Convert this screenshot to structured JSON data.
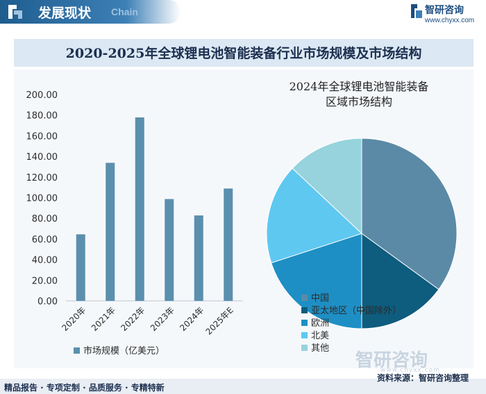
{
  "header": {
    "title": "发展现状",
    "subtitle": "Chain",
    "brand": "智研咨询",
    "brand_url": "www.chyxx.com"
  },
  "main_title": "2020-2025年全球锂电池智能装备行业市场规模及市场结构",
  "colors": {
    "bar": "#5b8fae",
    "header": "#1f5d8f",
    "title_band": "#dce8f3",
    "pie": [
      "#5b8aa6",
      "#0e5c7e",
      "#1e8fc4",
      "#5fc8f0",
      "#96d3dd"
    ]
  },
  "chart_data": [
    {
      "type": "bar",
      "categories": [
        "2020年",
        "2021年",
        "2022年",
        "2023年",
        "2024年",
        "2025年E"
      ],
      "values": [
        64.5,
        133.8,
        177.8,
        98.7,
        82.8,
        108.9
      ],
      "ylim": [
        0,
        200
      ],
      "yticks": [
        "0.00",
        "20.00",
        "40.00",
        "60.00",
        "80.00",
        "100.00",
        "120.00",
        "140.00",
        "160.00",
        "180.00",
        "200.00"
      ],
      "legend": "市场规模（亿美元）",
      "legend_position": "bottom-left",
      "grid": false
    },
    {
      "type": "pie",
      "title_lines": [
        "2024年全球锂电池智能装备",
        "区域市场结构"
      ],
      "labels": [
        "中国",
        "亚太地区（中国除外）",
        "欧洲",
        "北美",
        "其他"
      ],
      "values": [
        35,
        15,
        20,
        17,
        13
      ],
      "legend_position": "bottom"
    }
  ],
  "footer": {
    "left": "精品报告 · 专项定制 · 品质服务 · 专精特新",
    "right": "资料来源：智研咨询整理"
  },
  "watermark": {
    "text": "智研咨询",
    "url": "www.chyxx.com"
  }
}
